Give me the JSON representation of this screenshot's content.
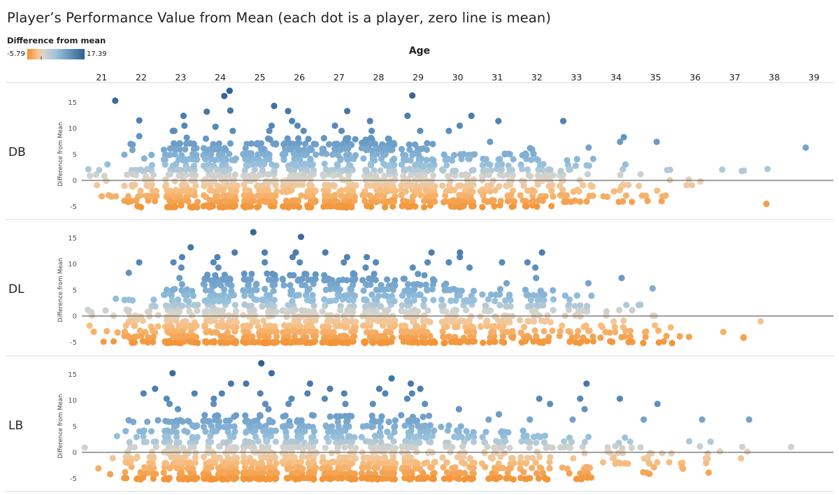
{
  "chart_data": {
    "type": "scatter",
    "title": "Player’s Performance Value from Mean (each dot is a player, zero line is mean)",
    "column_title": "Age",
    "row_field": "Position",
    "rows": [
      "DB",
      "DL",
      "LB"
    ],
    "columns": [
      21,
      22,
      23,
      24,
      25,
      26,
      27,
      28,
      29,
      30,
      31,
      32,
      33,
      34,
      35,
      36,
      37,
      38,
      39
    ],
    "ylabel": "Difference from Mean",
    "ylim": [
      -6,
      16.5
    ],
    "yticks": [
      15,
      10,
      5,
      0,
      -5
    ],
    "zero_line": 0,
    "color_legend": {
      "title": "Difference from mean",
      "min": -5.79,
      "max": 17.39,
      "min_label": "-5.79",
      "max_label": "17.39",
      "colors": [
        "#f28e2b",
        "#f8c38a",
        "#d9d5cc",
        "#86b4d6",
        "#2f5f93"
      ]
    },
    "panels": [
      {
        "row": "DB",
        "groups": [
          {
            "age": 21,
            "count": 12,
            "min": -4,
            "max": 3,
            "outliers": [
              15.3
            ]
          },
          {
            "age": 22,
            "count": 55,
            "min": -5,
            "max": 7,
            "outliers": [
              8.5,
              11.5
            ]
          },
          {
            "age": 23,
            "count": 120,
            "min": -5,
            "max": 7,
            "outliers": [
              8.2,
              9.5,
              9.5,
              10.5,
              12.4
            ]
          },
          {
            "age": 24,
            "count": 150,
            "min": -5,
            "max": 7,
            "outliers": [
              8,
              9.5,
              10.3,
              13.2,
              13.4,
              16.2,
              17.2
            ]
          },
          {
            "age": 25,
            "count": 140,
            "min": -5,
            "max": 8,
            "outliers": [
              9.5,
              10.5,
              14.3
            ]
          },
          {
            "age": 26,
            "count": 150,
            "min": -5,
            "max": 8,
            "outliers": [
              9.5,
              10.5,
              11.4,
              13.3
            ]
          },
          {
            "age": 27,
            "count": 140,
            "min": -5,
            "max": 8,
            "outliers": [
              9.5,
              10.5,
              13.3
            ]
          },
          {
            "age": 28,
            "count": 140,
            "min": -5,
            "max": 8,
            "outliers": [
              9.5,
              11.4
            ]
          },
          {
            "age": 29,
            "count": 120,
            "min": -5,
            "max": 7,
            "outliers": [
              9.5,
              12.4,
              16.3
            ]
          },
          {
            "age": 30,
            "count": 90,
            "min": -5,
            "max": 6,
            "outliers": [
              9.5,
              10.5,
              12.4
            ]
          },
          {
            "age": 31,
            "count": 70,
            "min": -5,
            "max": 5,
            "outliers": [
              7.4,
              11.4
            ]
          },
          {
            "age": 32,
            "count": 70,
            "min": -5,
            "max": 6,
            "outliers": []
          },
          {
            "age": 33,
            "count": 40,
            "min": -4.5,
            "max": 5,
            "outliers": [
              6.3,
              11.4
            ]
          },
          {
            "age": 34,
            "count": 15,
            "min": -4,
            "max": 3,
            "outliers": [
              7.4,
              8.3
            ]
          },
          {
            "age": 35,
            "count": 12,
            "min": -4.5,
            "max": 2.5,
            "outliers": [
              7.4
            ]
          },
          {
            "age": 36,
            "count": 4,
            "min": -1.5,
            "max": 2.5,
            "outliers": []
          },
          {
            "age": 37,
            "count": 3,
            "min": 1.5,
            "max": 2.5,
            "outliers": []
          },
          {
            "age": 38,
            "count": 1,
            "min": 1.5,
            "max": 1.5,
            "outliers": [
              -4.5
            ]
          },
          {
            "age": 39,
            "count": 0,
            "min": 0,
            "max": 0,
            "outliers": [
              6.3
            ]
          }
        ]
      },
      {
        "row": "DL",
        "groups": [
          {
            "age": 21,
            "count": 12,
            "min": -5.5,
            "max": 2,
            "outliers": [
              3.3
            ]
          },
          {
            "age": 22,
            "count": 50,
            "min": -5.5,
            "max": 4,
            "outliers": [
              8.3,
              10.3
            ]
          },
          {
            "age": 23,
            "count": 110,
            "min": -5.5,
            "max": 6,
            "outliers": [
              7.3,
              9.3,
              10.3,
              11.3,
              13.2
            ]
          },
          {
            "age": 24,
            "count": 140,
            "min": -5.5,
            "max": 8,
            "outliers": [
              9.3,
              10.3,
              11.3,
              12.2
            ]
          },
          {
            "age": 25,
            "count": 130,
            "min": -5.5,
            "max": 8,
            "outliers": [
              10.3,
              12.2,
              16.1
            ]
          },
          {
            "age": 26,
            "count": 130,
            "min": -5.5,
            "max": 8,
            "outliers": [
              10.3,
              11.3,
              12.2,
              15.2
            ]
          },
          {
            "age": 27,
            "count": 130,
            "min": -5.5,
            "max": 8,
            "outliers": [
              10.3,
              11.3,
              12.2
            ]
          },
          {
            "age": 28,
            "count": 130,
            "min": -5.5,
            "max": 8,
            "outliers": [
              9.3,
              10.3,
              11.3
            ]
          },
          {
            "age": 29,
            "count": 120,
            "min": -5.5,
            "max": 8,
            "outliers": [
              9.3,
              10.3,
              12.2
            ]
          },
          {
            "age": 30,
            "count": 90,
            "min": -5.5,
            "max": 6,
            "outliers": [
              9.3,
              10.3,
              11.3,
              12.2
            ]
          },
          {
            "age": 31,
            "count": 70,
            "min": -5.5,
            "max": 5,
            "outliers": [
              6.3,
              10.3
            ]
          },
          {
            "age": 32,
            "count": 60,
            "min": -5.5,
            "max": 5,
            "outliers": [
              7.3,
              9.3,
              10.3,
              12.2
            ]
          },
          {
            "age": 33,
            "count": 40,
            "min": -5.5,
            "max": 4.5,
            "outliers": [
              6.3
            ]
          },
          {
            "age": 34,
            "count": 25,
            "min": -5.5,
            "max": 2.5,
            "outliers": [
              7.3
            ]
          },
          {
            "age": 35,
            "count": 15,
            "min": -5,
            "max": 2.5,
            "outliers": [
              5.3
            ]
          },
          {
            "age": 36,
            "count": 2,
            "min": -4.5,
            "max": -3.5,
            "outliers": []
          },
          {
            "age": 37,
            "count": 3,
            "min": -4.5,
            "max": -1.5,
            "outliers": []
          },
          {
            "age": 38,
            "count": 1,
            "min": -1.5,
            "max": -1.5,
            "outliers": []
          },
          {
            "age": 39,
            "count": 0,
            "min": 0,
            "max": 0,
            "outliers": []
          }
        ]
      },
      {
        "row": "LB",
        "groups": [
          {
            "age": 21,
            "count": 5,
            "min": -4.5,
            "max": 3.3,
            "outliers": []
          },
          {
            "age": 22,
            "count": 55,
            "min": -5.5,
            "max": 6,
            "outliers": [
              11.3,
              12.2
            ]
          },
          {
            "age": 23,
            "count": 120,
            "min": -5.5,
            "max": 6,
            "outliers": [
              8.3,
              9.3,
              10.3,
              11.3,
              15.2
            ]
          },
          {
            "age": 24,
            "count": 140,
            "min": -5.5,
            "max": 7,
            "outliers": [
              9.3,
              10.3,
              11.3,
              13.2
            ]
          },
          {
            "age": 25,
            "count": 140,
            "min": -5.5,
            "max": 7,
            "outliers": [
              8.3,
              9.3,
              11.3,
              13.2,
              15.2,
              17.1
            ]
          },
          {
            "age": 26,
            "count": 140,
            "min": -5.5,
            "max": 7,
            "outliers": [
              9.3,
              10.3,
              11.3,
              13.2
            ]
          },
          {
            "age": 27,
            "count": 130,
            "min": -5.5,
            "max": 7,
            "outliers": [
              9.3,
              10.3,
              11.3,
              12.2
            ]
          },
          {
            "age": 28,
            "count": 130,
            "min": -5.5,
            "max": 7,
            "outliers": [
              9.3,
              11.3,
              12.2,
              14.2
            ]
          },
          {
            "age": 29,
            "count": 110,
            "min": -5.5,
            "max": 7,
            "outliers": [
              9.3,
              10.3,
              11.3,
              12.2,
              13.2
            ]
          },
          {
            "age": 30,
            "count": 70,
            "min": -5.5,
            "max": 5,
            "outliers": [
              8.3
            ]
          },
          {
            "age": 31,
            "count": 60,
            "min": -5.5,
            "max": 5,
            "outliers": [
              6.3,
              7.3
            ]
          },
          {
            "age": 32,
            "count": 50,
            "min": -5.5,
            "max": 4,
            "outliers": [
              6.3,
              9.3,
              10.3
            ]
          },
          {
            "age": 33,
            "count": 30,
            "min": -5.5,
            "max": 4,
            "outliers": [
              6.3,
              8.3,
              10.3,
              13.2
            ]
          },
          {
            "age": 34,
            "count": 20,
            "min": -2.5,
            "max": 3,
            "outliers": [
              10.3
            ]
          },
          {
            "age": 35,
            "count": 15,
            "min": -4.5,
            "max": 3,
            "outliers": [
              6.3,
              9.3
            ]
          },
          {
            "age": 36,
            "count": 12,
            "min": -4.5,
            "max": 3,
            "outliers": [
              6.3
            ]
          },
          {
            "age": 37,
            "count": 4,
            "min": -1.5,
            "max": 1.5,
            "outliers": [
              6.3
            ]
          },
          {
            "age": 38,
            "count": 1,
            "min": 1.3,
            "max": 1.3,
            "outliers": []
          },
          {
            "age": 39,
            "count": 0,
            "min": 0,
            "max": 0,
            "outliers": []
          }
        ]
      }
    ]
  }
}
